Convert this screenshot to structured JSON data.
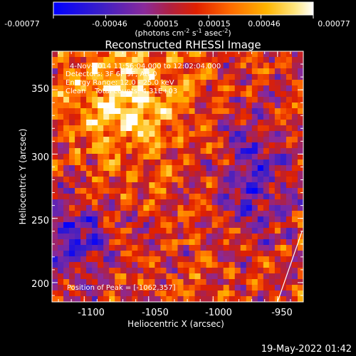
{
  "colorbar": {
    "tick_labels": [
      "-0.00077",
      "-0.00046",
      "-0.00015",
      "0.00015",
      "0.00046",
      "0.00077"
    ],
    "tick_values": [
      -0.00077,
      -0.00046,
      -0.00015,
      0.00015,
      0.00046,
      0.00077
    ],
    "range": [
      -0.00077,
      0.00077
    ],
    "units_text": "(photons cm",
    "units_exp1": "-2",
    "units_mid": " s",
    "units_exp2": "-1",
    "units_mid2": " asec",
    "units_exp3": "-2",
    "units_end": ")"
  },
  "chart_data": {
    "type": "heatmap",
    "title": "Reconstructed RHESSI Image",
    "xlabel": "Heliocentric X (arcsec)",
    "ylabel": "Heliocentric Y (arcsec)",
    "xlim": [
      -1125,
      -930
    ],
    "ylim": [
      185,
      380
    ],
    "x_tick_labels": [
      "-1100",
      "-1050",
      "-1000",
      "-950"
    ],
    "x_ticks": [
      -1100,
      -1050,
      -1000,
      -950
    ],
    "y_tick_labels": [
      "200",
      "250",
      "300",
      "350"
    ],
    "y_ticks": [
      200,
      250,
      300,
      350
    ],
    "peak_x": -1062,
    "peak_y": 357,
    "limb_line": {
      "x": [
        -950,
        -931
      ],
      "y": [
        185,
        240
      ]
    }
  },
  "annotations": {
    "line1": "4-Nov-2014 11:56:04.000 to 12:02:04.000",
    "line2": "Detectors: 3F 6F 9F, Att 0",
    "line3": "Energy Range: 12.0 - 25.0 keV",
    "line4": "Clean    Total counts: 4.31E+03",
    "peak": "Position of Peak = [-1062,357]"
  },
  "footer": {
    "timestamp": "19-May-2022 01:42"
  }
}
